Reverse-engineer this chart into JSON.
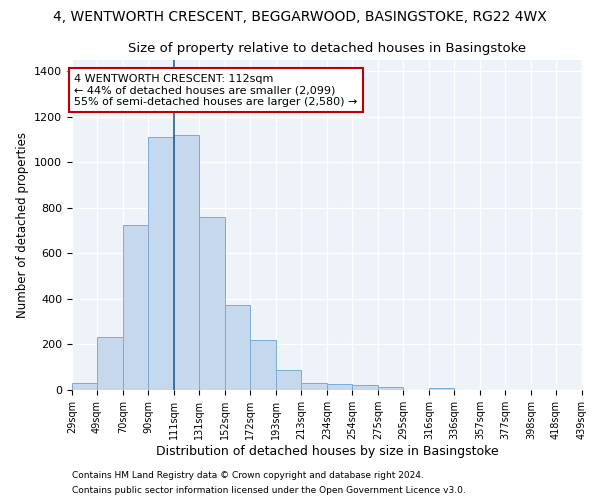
{
  "title1": "4, WENTWORTH CRESCENT, BEGGARWOOD, BASINGSTOKE, RG22 4WX",
  "title2": "Size of property relative to detached houses in Basingstoke",
  "xlabel": "Distribution of detached houses by size in Basingstoke",
  "ylabel": "Number of detached properties",
  "footnote1": "Contains HM Land Registry data © Crown copyright and database right 2024.",
  "footnote2": "Contains public sector information licensed under the Open Government Licence v3.0.",
  "annotation_line1": "4 WENTWORTH CRESCENT: 112sqm",
  "annotation_line2": "← 44% of detached houses are smaller (2,099)",
  "annotation_line3": "55% of semi-detached houses are larger (2,580) →",
  "bin_edges": [
    29,
    49,
    70,
    90,
    111,
    131,
    152,
    172,
    193,
    213,
    234,
    254,
    275,
    295,
    316,
    336,
    357,
    377,
    398,
    418,
    439
  ],
  "bar_heights": [
    30,
    235,
    725,
    1110,
    1120,
    760,
    375,
    220,
    90,
    30,
    25,
    20,
    15,
    0,
    10,
    0,
    0,
    0,
    0,
    0
  ],
  "bar_color": "#c5d8ed",
  "bar_edge_color": "#7aadd4",
  "vline_color": "#2c5f8a",
  "vline_x": 111,
  "ylim": [
    0,
    1450
  ],
  "yticks": [
    0,
    200,
    400,
    600,
    800,
    1000,
    1200,
    1400
  ],
  "bg_color": "#eef3f9",
  "grid_color": "#ffffff",
  "title1_fontsize": 10,
  "title2_fontsize": 9.5,
  "xlabel_fontsize": 9,
  "ylabel_fontsize": 8.5,
  "annot_box_color": "#c00000",
  "tick_labels": [
    "29sqm",
    "49sqm",
    "70sqm",
    "90sqm",
    "111sqm",
    "131sqm",
    "152sqm",
    "172sqm",
    "193sqm",
    "213sqm",
    "234sqm",
    "254sqm",
    "275sqm",
    "295sqm",
    "316sqm",
    "336sqm",
    "357sqm",
    "377sqm",
    "398sqm",
    "418sqm",
    "439sqm"
  ]
}
